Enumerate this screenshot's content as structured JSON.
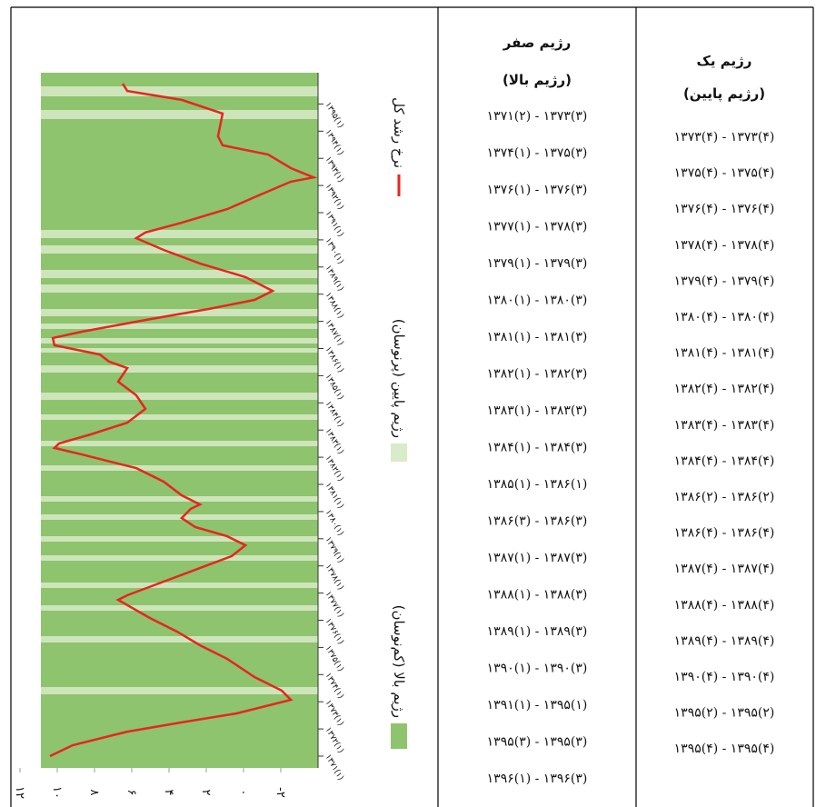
{
  "chart_data": {
    "type": "line",
    "x": [
      1371.0,
      1371.4,
      1371.9,
      1372.24,
      1372.57,
      1373.07,
      1373.41,
      1373.91,
      1374.58,
      1375.08,
      1375.58,
      1376.08,
      1376.75,
      1376.92,
      1377.42,
      1377.92,
      1378.36,
      1378.76,
      1379.09,
      1379.43,
      1379.76,
      1380.1,
      1380.26,
      1380.6,
      1381.1,
      1381.6,
      1382.1,
      1382.34,
      1382.51,
      1382.84,
      1383.27,
      1383.78,
      1384.28,
      1384.78,
      1385.28,
      1385.52,
      1385.78,
      1386.12,
      1386.39,
      1386.62,
      1387.05,
      1387.46,
      1387.79,
      1388.12,
      1388.63,
      1389.13,
      1389.63,
      1390.06,
      1390.27,
      1390.63,
      1391.13,
      1391.64,
      1392.14,
      1392.3,
      1392.64,
      1393.14,
      1393.48,
      1393.81,
      1394.65,
      1395.15,
      1395.48,
      1395.75
    ],
    "series": [
      {
        "name": "نرخ رشد کل",
        "color": "#e8251f",
        "values": [
          10.39,
          9.17,
          6.24,
          3.32,
          0.39,
          -2.54,
          -2.05,
          -0.59,
          0.88,
          2.34,
          3.56,
          5.02,
          6.73,
          6.24,
          4.29,
          2.34,
          0.63,
          -0.1,
          0.88,
          2.59,
          3.32,
          2.83,
          2.34,
          3.32,
          4.29,
          5.76,
          8.68,
          10.15,
          9.9,
          8.2,
          6.24,
          5.27,
          5.76,
          6.73,
          6.24,
          7.22,
          7.71,
          10.15,
          10.24,
          8.68,
          5.27,
          1.85,
          -0.59,
          -1.56,
          -0.1,
          2.34,
          4.29,
          5.76,
          5.27,
          3.32,
          0.88,
          -0.83,
          -2.54,
          -3.76,
          -2.54,
          -1.32,
          1.12,
          1.37,
          1.12,
          3.32,
          6.24,
          6.49
        ]
      }
    ],
    "regimes": [
      {
        "name": "رژیم پایین (پرنوسان)",
        "color": "#d9ebc9"
      },
      {
        "name": "رژیم بالا (کم‌نوسان)",
        "color": "#8dc46d"
      }
    ],
    "xlim": [
      1371,
      1395.75
    ],
    "xticks": [
      {
        "value": 1371,
        "label": "۱۳۷۱(۱)"
      },
      {
        "value": 1372,
        "label": "۱۳۷۲(۱)"
      },
      {
        "value": 1373,
        "label": "۱۳۷۳(۱)"
      },
      {
        "value": 1374,
        "label": "۱۳۷۴(۱)"
      },
      {
        "value": 1375,
        "label": "۱۳۷۵(۱)"
      },
      {
        "value": 1376,
        "label": "۱۳۷۶(۱)"
      },
      {
        "value": 1377,
        "label": "۱۳۷۷(۱)"
      },
      {
        "value": 1378,
        "label": "۱۳۷۸(۱)"
      },
      {
        "value": 1379,
        "label": "۱۳۷۹(۱)"
      },
      {
        "value": 1380,
        "label": "۱۳۸۰(۱)"
      },
      {
        "value": 1381,
        "label": "۱۳۸۱(۱)"
      },
      {
        "value": 1382,
        "label": "۱۳۸۲(۱)"
      },
      {
        "value": 1383,
        "label": "۱۳۸۳(۱)"
      },
      {
        "value": 1384,
        "label": "۱۳۸۴(۱)"
      },
      {
        "value": 1385,
        "label": "۱۳۸۵(۱)"
      },
      {
        "value": 1386,
        "label": "۱۳۸۶(۱)"
      },
      {
        "value": 1387,
        "label": "۱۳۸۷(۱)"
      },
      {
        "value": 1388,
        "label": "۱۳۸۸(۱)"
      },
      {
        "value": 1389,
        "label": "۱۳۸۹(۱)"
      },
      {
        "value": 1390,
        "label": "۱۳۹۰(۱)"
      },
      {
        "value": 1391,
        "label": "۱۳۹۱(۱)"
      },
      {
        "value": 1392,
        "label": "۱۳۹۲(۱)"
      },
      {
        "value": 1393,
        "label": "۱۳۹۳(۱)"
      },
      {
        "value": 1394,
        "label": "۱۳۹۴(۱)"
      },
      {
        "value": 1395,
        "label": "۱۳۹۵(۱)"
      }
    ],
    "ylim": [
      -4,
      12
    ],
    "yticks": [
      {
        "value": 12,
        "label": "۱۲"
      },
      {
        "value": 10,
        "label": "۱۰"
      },
      {
        "value": 8,
        "label": "۸"
      },
      {
        "value": 6,
        "label": "۶"
      },
      {
        "value": 4,
        "label": "۴"
      },
      {
        "value": 2,
        "label": "۲"
      },
      {
        "value": 0,
        "label": "۰"
      },
      {
        "value": -2,
        "label": "-۲"
      }
    ]
  },
  "table": {
    "columns": [
      {
        "header": [
          "رژیم صفر",
          "(رژیم بالا)"
        ],
        "rows": [
          "۱۳۷۱(۲) - ۱۳۷۳(۳)",
          "۱۳۷۴(۱) - ۱۳۷۵(۳)",
          "۱۳۷۶(۱) - ۱۳۷۶(۳)",
          "۱۳۷۷(۱) - ۱۳۷۸(۳)",
          "۱۳۷۹(۱) - ۱۳۷۹(۳)",
          "۱۳۸۰(۱) - ۱۳۸۰(۳)",
          "۱۳۸۱(۱) - ۱۳۸۱(۳)",
          "۱۳۸۲(۱) - ۱۳۸۲(۳)",
          "۱۳۸۳(۱) - ۱۳۸۳(۳)",
          "۱۳۸۴(۱) - ۱۳۸۴(۳)",
          "۱۳۸۵(۱) - ۱۳۸۶(۱)",
          "۱۳۸۶(۳) - ۱۳۸۶(۳)",
          "۱۳۸۷(۱) - ۱۳۸۷(۳)",
          "۱۳۸۸(۱) - ۱۳۸۸(۳)",
          "۱۳۸۹(۱) - ۱۳۸۹(۳)",
          "۱۳۹۰(۱) - ۱۳۹۰(۳)",
          "۱۳۹۱(۱) - ۱۳۹۵(۱)",
          "۱۳۹۵(۳) - ۱۳۹۵(۳)",
          "۱۳۹۶(۱) - ۱۳۹۶(۳)"
        ]
      },
      {
        "header": [
          "رژیم یک",
          "(رژیم پایین)"
        ],
        "rows": [
          "۱۳۷۳(۴) - ۱۳۷۳(۴)",
          "۱۳۷۵(۴) - ۱۳۷۵(۴)",
          "۱۳۷۶(۴) - ۱۳۷۶(۴)",
          "۱۳۷۸(۴) - ۱۳۷۸(۴)",
          "۱۳۷۹(۴) - ۱۳۷۹(۴)",
          "۱۳۸۰(۴) - ۱۳۸۰(۴)",
          "۱۳۸۱(۴) - ۱۳۸۱(۴)",
          "۱۳۸۲(۴) - ۱۳۸۲(۴)",
          "۱۳۸۳(۴) - ۱۳۸۳(۴)",
          "۱۳۸۴(۴) - ۱۳۸۴(۴)",
          "۱۳۸۶(۲) - ۱۳۸۶(۲)",
          "۱۳۸۶(۴) - ۱۳۸۶(۴)",
          "۱۳۸۷(۴) - ۱۳۸۷(۴)",
          "۱۳۸۸(۴) - ۱۳۸۸(۴)",
          "۱۳۸۹(۴) - ۱۳۸۹(۴)",
          "۱۳۹۰(۴) - ۱۳۹۰(۴)",
          "۱۳۹۵(۲) - ۱۳۹۵(۲)",
          "۱۳۹۵(۴) - ۱۳۹۵(۴)"
        ]
      }
    ]
  }
}
